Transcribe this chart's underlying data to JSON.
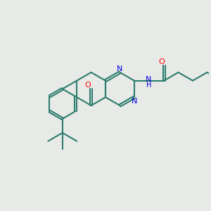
{
  "bg_color": "#e8eae8",
  "bond_color": "#2d7d6e",
  "nitrogen_color": "#0000e0",
  "oxygen_color": "#ff0000",
  "bond_width": 1.5,
  "fig_size": [
    3.0,
    3.0
  ],
  "dpi": 100,
  "xlim": [
    0,
    10
  ],
  "ylim": [
    0,
    10
  ]
}
